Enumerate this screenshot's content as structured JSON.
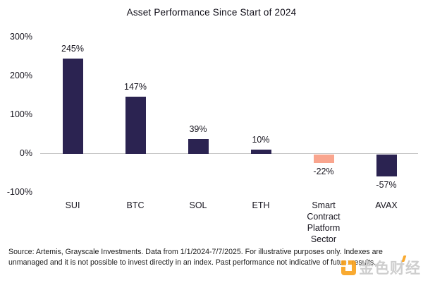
{
  "page": {
    "background": "#ffffff"
  },
  "chart_data": {
    "type": "bar",
    "title": "Asset Performance Since Start of 2024",
    "categories": [
      "SUI",
      "BTC",
      "SOL",
      "ETH",
      "Smart Contract Platform Sector",
      "AVAX"
    ],
    "values": [
      245,
      147,
      39,
      10,
      -22,
      -57
    ],
    "value_labels": [
      "245%",
      "147%",
      "39%",
      "10%",
      "-22%",
      "-57%"
    ],
    "bar_colors": [
      "#2b2351",
      "#2b2351",
      "#2b2351",
      "#2b2351",
      "#f9a58e",
      "#2b2351"
    ],
    "yticks": [
      300,
      200,
      100,
      0,
      -100
    ],
    "ytick_labels": [
      "300%",
      "200%",
      "100%",
      "0%",
      "-100%"
    ],
    "ylim": [
      -100,
      300
    ],
    "xlabel": "",
    "ylabel": "",
    "grid": "zero-line-only",
    "zero_line_color": "#c9c9c9",
    "legend": "none"
  },
  "footer": {
    "lines": [
      "Source: Artemis, Grayscale Investments. Data from 1/1/2024-7/7/2025. For illustrative purposes only.",
      "Indexes are unmanaged and it is not possible to invest directly in an index. Past performance not",
      "indicative of future results."
    ]
  },
  "watermark": {
    "text": "金色财经",
    "logo_color": "#f9a11b"
  }
}
